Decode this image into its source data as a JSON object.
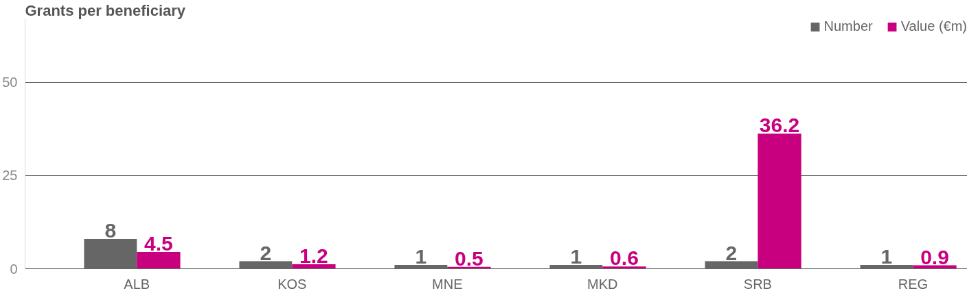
{
  "chart_data": {
    "type": "bar",
    "title": "Grants per beneficiary",
    "categories": [
      "ALB",
      "KOS",
      "MNE",
      "MKD",
      "SRB",
      "REG"
    ],
    "series": [
      {
        "name": "Number",
        "color": "#666666",
        "values": [
          8,
          2,
          1,
          1,
          2,
          1
        ]
      },
      {
        "name": "Value (€m)",
        "color": "#c8007f",
        "values": [
          4.5,
          1.2,
          0.5,
          0.6,
          36.2,
          0.9
        ]
      }
    ],
    "ylim": [
      0,
      67
    ],
    "yticks": [
      0,
      25,
      50
    ],
    "grid": "y",
    "legend": "top right",
    "data_labels": true
  }
}
